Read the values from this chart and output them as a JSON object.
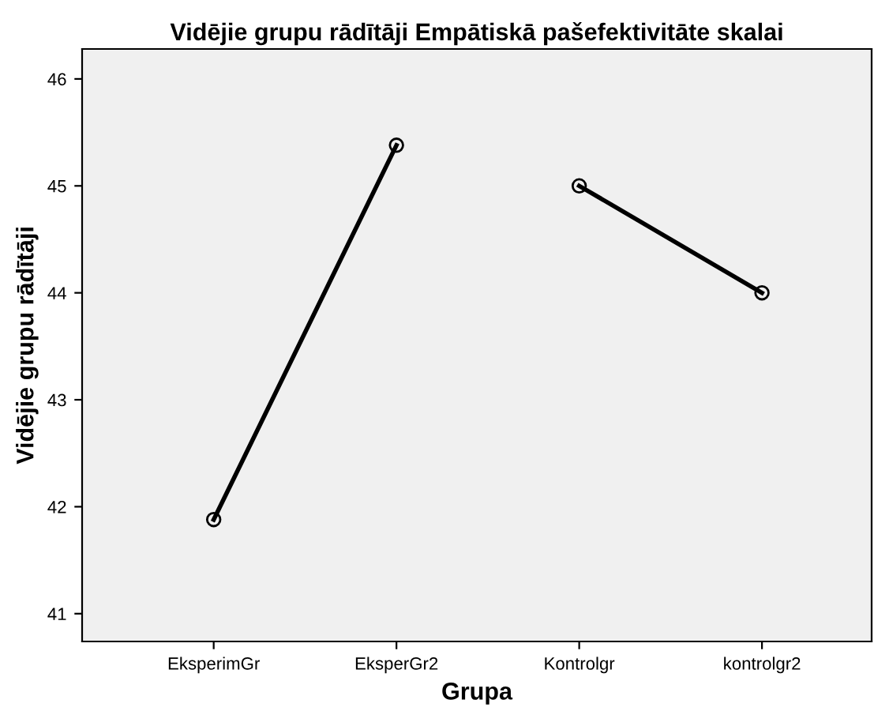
{
  "chart_data": {
    "type": "line",
    "title": "Vidējie grupu rādītāji Empātiskā pašefektivitāte skalai",
    "xlabel": "Grupa",
    "ylabel": "Vidējie grupu rādītāji",
    "categories": [
      "EksperimGr",
      "EksperGr2",
      "Kontrolgr",
      "kontrolgr2"
    ],
    "series": [
      {
        "color": "#000000",
        "values": [
          41.88,
          45.38,
          null,
          null
        ]
      },
      {
        "color": "#000000",
        "values": [
          null,
          null,
          45.0,
          44.0
        ]
      }
    ],
    "ylim": [
      40.74,
      46.28
    ],
    "yticks": [
      41,
      42,
      43,
      44,
      45,
      46
    ],
    "marker": "circle",
    "line_style": "solid",
    "grid": false,
    "legend": false
  }
}
